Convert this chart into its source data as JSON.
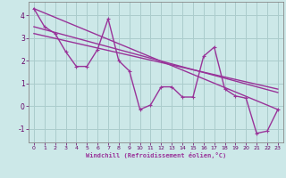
{
  "xlabel": "Windchill (Refroidissement éolien,°C)",
  "bg_color": "#cce8e8",
  "line_color": "#993399",
  "grid_color": "#aacccc",
  "axis_label_color": "#660066",
  "xlim": [
    -0.5,
    23.5
  ],
  "ylim": [
    -1.6,
    4.6
  ],
  "xticks": [
    0,
    1,
    2,
    3,
    4,
    5,
    6,
    7,
    8,
    9,
    10,
    11,
    12,
    13,
    14,
    15,
    16,
    17,
    18,
    19,
    20,
    21,
    22,
    23
  ],
  "yticks": [
    -1,
    0,
    1,
    2,
    3,
    4
  ],
  "series1_x": [
    0,
    1,
    2,
    3,
    4,
    5,
    6,
    7,
    8,
    9,
    10,
    11,
    12,
    13,
    14,
    15,
    16,
    17,
    18,
    19,
    20,
    21,
    22,
    23
  ],
  "series1_y": [
    4.3,
    3.5,
    3.2,
    2.4,
    1.75,
    1.75,
    2.5,
    3.85,
    2.0,
    1.55,
    -0.15,
    0.05,
    0.85,
    0.85,
    0.4,
    0.4,
    2.2,
    2.6,
    0.75,
    0.45,
    0.35,
    -1.2,
    -1.1,
    -0.15
  ],
  "trend1_x": [
    0,
    23
  ],
  "trend1_y": [
    4.3,
    -0.15
  ],
  "trend2_x": [
    0,
    23
  ],
  "trend2_y": [
    3.5,
    0.6
  ],
  "trend3_x": [
    0,
    23
  ],
  "trend3_y": [
    3.2,
    0.75
  ]
}
